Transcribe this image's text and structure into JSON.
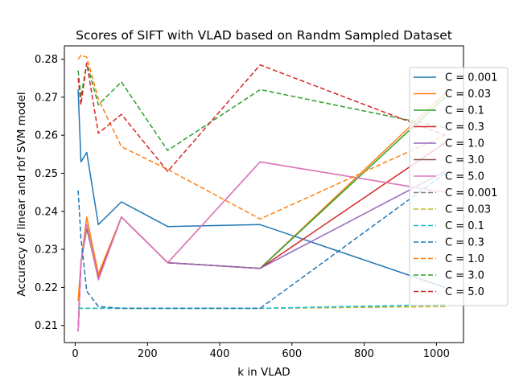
{
  "chart_data": {
    "type": "line",
    "title": "Scores of SIFT with VLAD based on Randm Sampled Dataset",
    "xlabel": "k in VLAD",
    "ylabel": "Accuracy of linear and rbf SVM model",
    "xlim": [
      -30,
      1075
    ],
    "ylim": [
      0.2055,
      0.2835
    ],
    "xticks": [
      0,
      200,
      400,
      600,
      800,
      1000
    ],
    "yticks": [
      0.21,
      0.22,
      0.23,
      0.24,
      0.25,
      0.26,
      0.27,
      0.28
    ],
    "grid": false,
    "legend_position": "right",
    "x": [
      8,
      16,
      32,
      64,
      128,
      256,
      512,
      1024
    ],
    "series": [
      {
        "name": "C = 0.001",
        "color": "#1f77b4",
        "dash": "solid",
        "values": [
          0.272,
          0.253,
          0.2555,
          0.2365,
          0.2425,
          0.236,
          0.2365,
          0.22
        ]
      },
      {
        "name": "C = 0.03",
        "color": "#ff7f0e",
        "dash": "solid",
        "values": [
          0.2165,
          0.2265,
          0.2385,
          0.2235,
          0.2385,
          0.2265,
          0.225,
          0.271
        ]
      },
      {
        "name": "C = 0.1",
        "color": "#2ca02c",
        "dash": "solid",
        "values": [
          0.2085,
          0.2265,
          0.2355,
          0.2225,
          0.2385,
          0.2265,
          0.225,
          0.27
        ]
      },
      {
        "name": "C = 0.3",
        "color": "#d62728",
        "dash": "solid",
        "values": [
          0.2085,
          0.2265,
          0.236,
          0.2225,
          0.2385,
          0.2265,
          0.225,
          0.258
        ]
      },
      {
        "name": "C = 1.0",
        "color": "#9467bd",
        "dash": "solid",
        "values": [
          0.2085,
          0.2265,
          0.2365,
          0.222,
          0.2385,
          0.2265,
          0.225,
          0.2505
        ]
      },
      {
        "name": "C = 3.0",
        "color": "#8c564b",
        "dash": "solid",
        "values": [
          0.2085,
          0.2265,
          0.2365,
          0.222,
          0.2385,
          0.2265,
          0.253,
          0.245
        ]
      },
      {
        "name": "C = 5.0",
        "color": "#e377c2",
        "dash": "solid",
        "values": [
          0.2085,
          0.2265,
          0.2365,
          0.222,
          0.2385,
          0.2265,
          0.253,
          0.245
        ]
      },
      {
        "name": "C = 0.001",
        "color": "#7f7f7f",
        "dash": "dashed",
        "values": [
          0.2145,
          0.2145,
          0.2145,
          0.2145,
          0.2145,
          0.2145,
          0.2145,
          0.215
        ]
      },
      {
        "name": "C = 0.03",
        "color": "#bcbd22",
        "dash": "dashed",
        "values": [
          0.2145,
          0.2145,
          0.2145,
          0.2145,
          0.2145,
          0.2145,
          0.2145,
          0.215
        ]
      },
      {
        "name": "C = 0.1",
        "color": "#17becf",
        "dash": "dashed",
        "values": [
          0.2145,
          0.2145,
          0.2145,
          0.2145,
          0.2145,
          0.2145,
          0.2145,
          0.2155
        ]
      },
      {
        "name": "C = 0.3",
        "color": "#1f77b4",
        "dash": "dashed",
        "values": [
          0.2455,
          0.233,
          0.219,
          0.215,
          0.2145,
          0.2145,
          0.2145,
          0.25
        ]
      },
      {
        "name": "C = 1.0",
        "color": "#ff7f0e",
        "dash": "dashed",
        "values": [
          0.28,
          0.281,
          0.2805,
          0.2695,
          0.257,
          0.251,
          0.238,
          0.26
        ]
      },
      {
        "name": "C = 3.0",
        "color": "#2ca02c",
        "dash": "dashed",
        "values": [
          0.277,
          0.27,
          0.279,
          0.268,
          0.274,
          0.256,
          0.272,
          0.262
        ]
      },
      {
        "name": "C = 5.0",
        "color": "#d62728",
        "dash": "dashed",
        "values": [
          0.275,
          0.268,
          0.279,
          0.2605,
          0.2655,
          0.2505,
          0.2785,
          0.26
        ]
      }
    ]
  }
}
